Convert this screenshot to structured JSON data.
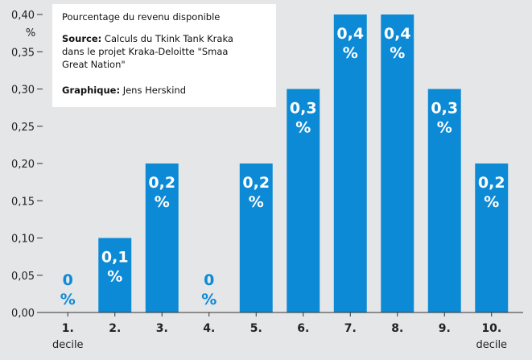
{
  "chart_data": {
    "type": "bar",
    "categories": [
      "1.",
      "2.",
      "3.",
      "4.",
      "5.",
      "6.",
      "7.",
      "8.",
      "9.",
      "10."
    ],
    "category_sublabels": {
      "first": "decile",
      "last": "decile"
    },
    "values": [
      0,
      0.1,
      0.2,
      0,
      0.2,
      0.3,
      0.4,
      0.4,
      0.3,
      0.2
    ],
    "data_labels": [
      [
        "0",
        "%"
      ],
      [
        "0,1",
        "%"
      ],
      [
        "0,2",
        "%"
      ],
      [
        "0",
        "%"
      ],
      [
        "0,2",
        "%"
      ],
      [
        "0,3",
        "%"
      ],
      [
        "0,4",
        "%"
      ],
      [
        "0,4",
        "%"
      ],
      [
        "0,3",
        "%"
      ],
      [
        "0,2",
        "%"
      ]
    ],
    "ylim": [
      0,
      0.4
    ],
    "yticks": [
      "0,00",
      "0,05",
      "0,10",
      "0,15",
      "0,20",
      "0,25",
      "0,30",
      "0,35",
      "0,40"
    ],
    "ylabel": "%",
    "legend_box": {
      "title": "Pourcentage du revenu disponible",
      "source_label": "Source:",
      "source_lines": [
        " Calculs du Tkink Tank Kraka",
        "dans le projet Kraka-Deloitte \"Smaa",
        "Great Nation\""
      ],
      "graphic_label": "Graphique:",
      "graphic_text": " Jens Herskind"
    },
    "grid": false,
    "legend_placement": "top-left",
    "colors": {
      "bar": "#0c8ad6",
      "label_on_bar": "#ffffff",
      "label_off_bar": "#0c8ad6",
      "background": "#e4e6e8",
      "info_box": "#ffffff"
    }
  }
}
